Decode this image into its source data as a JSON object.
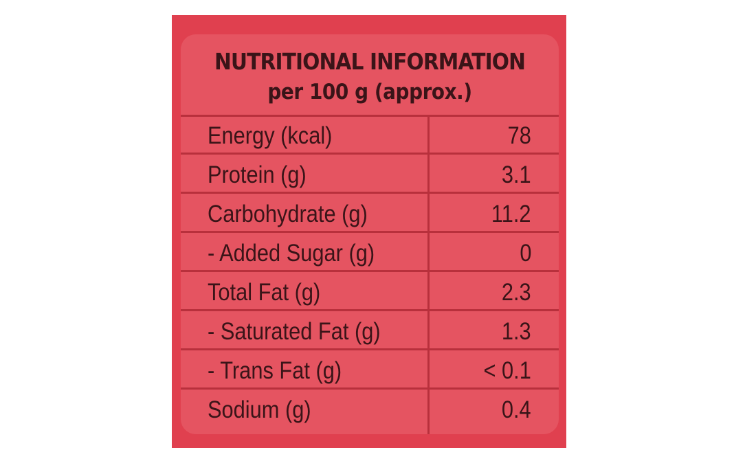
{
  "panel": {
    "title": "NUTRITIONAL INFORMATION",
    "subtitle": "per 100 g (approx.)",
    "background_color": "#e0404f",
    "inner_color": "#e55461",
    "rule_color": "#b8303c",
    "text_color": "#3a1418"
  },
  "rows": [
    {
      "label": "Energy (kcal)",
      "value": "78"
    },
    {
      "label": "Protein (g)",
      "value": "3.1"
    },
    {
      "label": "Carbohydrate (g)",
      "value": "11.2"
    },
    {
      "label": "- Added Sugar (g)",
      "value": "0"
    },
    {
      "label": "Total Fat (g)",
      "value": "2.3"
    },
    {
      "label": "- Saturated Fat (g)",
      "value": "1.3"
    },
    {
      "label": "- Trans Fat (g)",
      "value": "< 0.1"
    },
    {
      "label": "Sodium (g)",
      "value": "0.4"
    }
  ]
}
